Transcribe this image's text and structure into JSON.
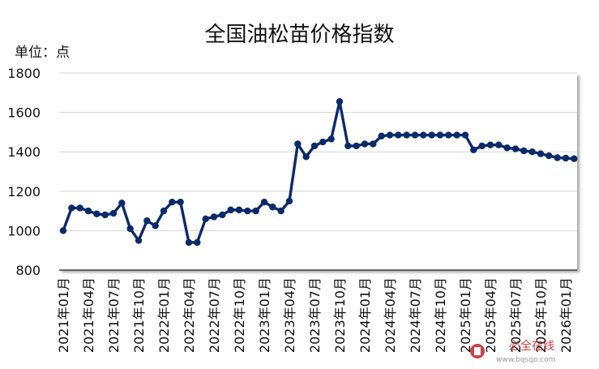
{
  "colors": {
    "line": "#0b2a69",
    "marker": "#0b2a69",
    "grid": "#d4d4d4",
    "axis": "#404040",
    "shadow": "#9a9a9a",
    "watermark": "#c4272d",
    "watermark_url": "#8a8a8a"
  },
  "watermark": {
    "name": "必全在线",
    "url": "www.bqsqo.com",
    "icon": "logo-icon"
  },
  "chart_data": {
    "type": "line",
    "title": "全国油松苗价格指数",
    "ylabel": "单位：点",
    "xlabel": "",
    "ylim": [
      800,
      1800
    ],
    "yticks": [
      "800",
      "1000",
      "1200",
      "1400",
      "1600",
      "1800"
    ],
    "grid": true,
    "legend": "none",
    "xticks": [
      "2021年01月",
      "2021年04月",
      "2021年07月",
      "2021年10月",
      "2022年01月",
      "2022年04月",
      "2022年07月",
      "2022年10月",
      "2023年01月",
      "2023年04月",
      "2023年07月",
      "2023年10月",
      "2024年01月",
      "2024年04月",
      "2024年07月",
      "2024年10月",
      "2025年01月",
      "2025年04月",
      "2025年07月",
      "2025年10月",
      "2026年01月"
    ],
    "x": [
      "2021年01月",
      "2021年02月",
      "2021年03月",
      "2021年04月",
      "2021年05月",
      "2021年06月",
      "2021年07月",
      "2021年08月",
      "2021年09月",
      "2021年10月",
      "2021年11月",
      "2021年12月",
      "2022年01月",
      "2022年02月",
      "2022年03月",
      "2022年04月",
      "2022年05月",
      "2022年06月",
      "2022年07月",
      "2022年08月",
      "2022年09月",
      "2022年10月",
      "2022年11月",
      "2022年12月",
      "2023年01月",
      "2023年02月",
      "2023年03月",
      "2023年04月",
      "2023年05月",
      "2023年06月",
      "2023年07月",
      "2023年08月",
      "2023年09月",
      "2023年10月",
      "2023年11月",
      "2023年12月",
      "2024年01月",
      "2024年02月",
      "2024年03月",
      "2024年04月",
      "2024年05月",
      "2024年06月",
      "2024年07月",
      "2024年08月",
      "2024年09月",
      "2024年10月",
      "2024年11月",
      "2024年12月",
      "2025年01月",
      "2025年02月",
      "2025年03月",
      "2025年04月",
      "2025年05月",
      "2025年06月",
      "2025年07月",
      "2025年08月",
      "2025年09月",
      "2025年10月",
      "2025年11月",
      "2025年12月",
      "2026年01月",
      "2026年02月"
    ],
    "series": [
      {
        "values": [
          1000,
          1115,
          1115,
          1100,
          1085,
          1080,
          1088,
          1140,
          1010,
          950,
          1050,
          1025,
          1100,
          1145,
          1145,
          940,
          940,
          1060,
          1070,
          1080,
          1105,
          1105,
          1100,
          1100,
          1145,
          1120,
          1100,
          1150,
          1440,
          1375,
          1430,
          1450,
          1465,
          1655,
          1430,
          1430,
          1440,
          1440,
          1480,
          1485,
          1485,
          1485,
          1485,
          1485,
          1485,
          1485,
          1485,
          1485,
          1485,
          1410,
          1430,
          1435,
          1435,
          1420,
          1415,
          1405,
          1400,
          1390,
          1380,
          1370,
          1368,
          1365
        ]
      }
    ]
  }
}
